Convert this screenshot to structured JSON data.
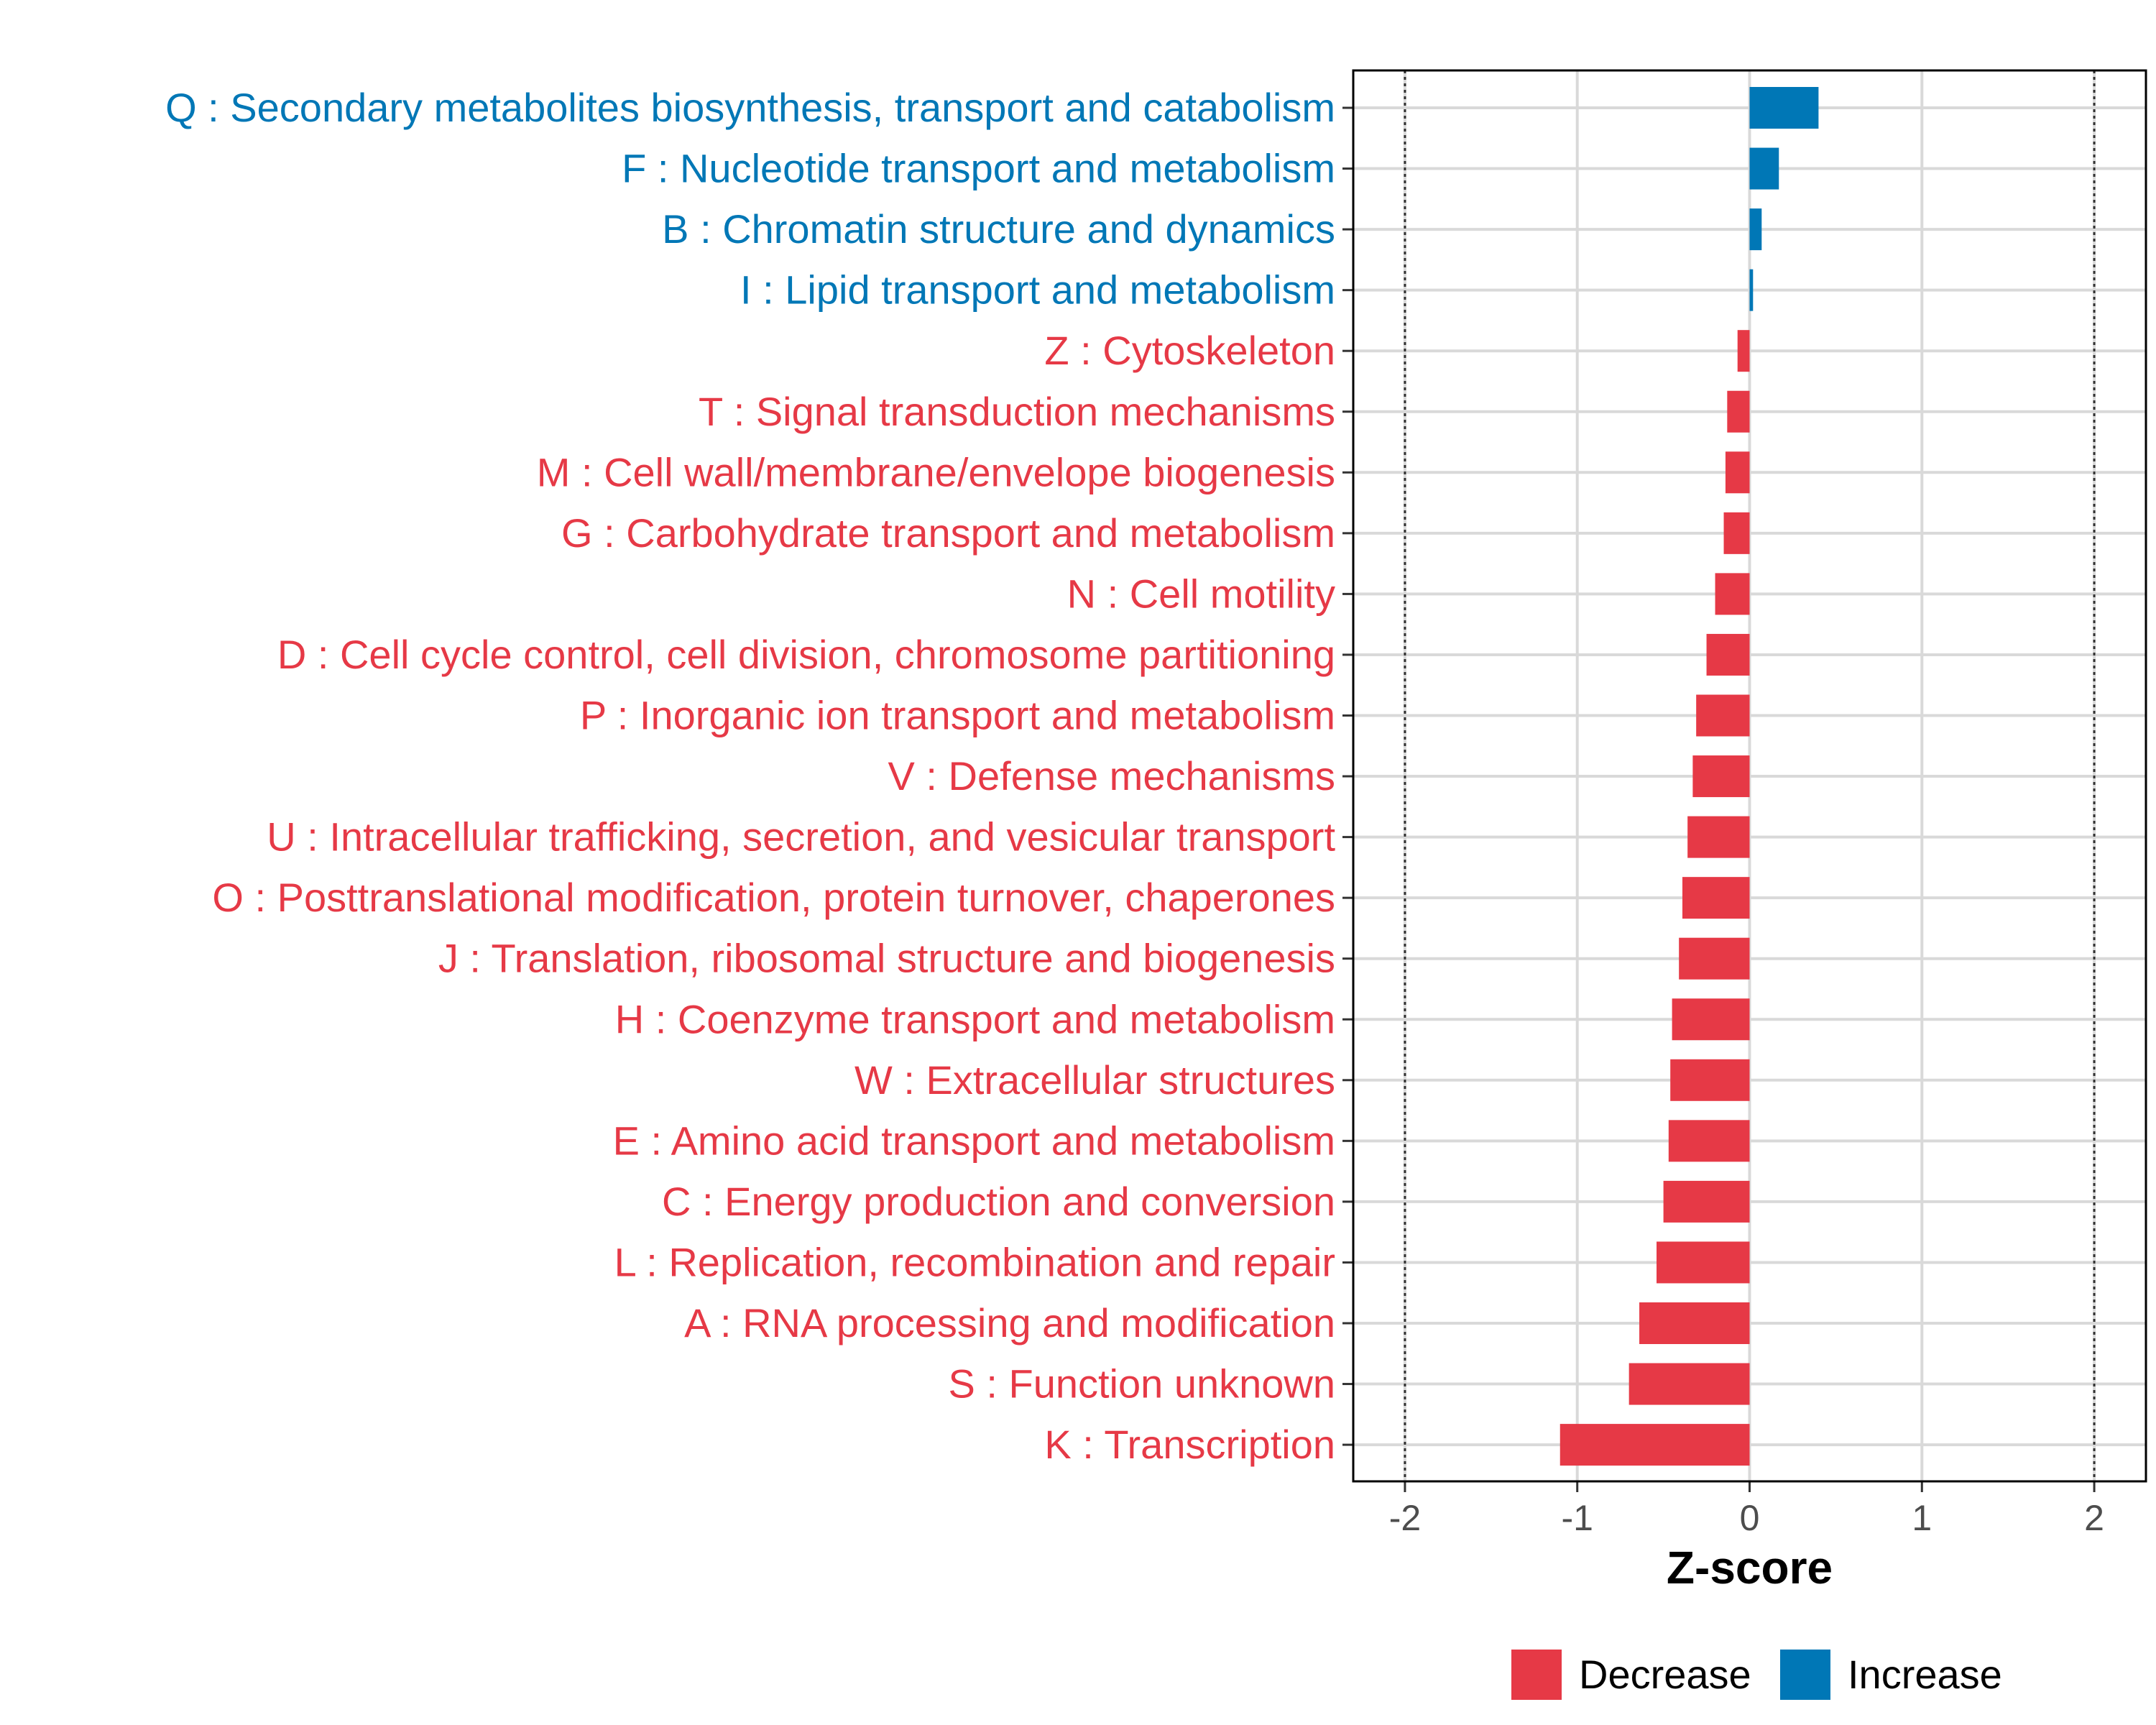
{
  "chart_data": {
    "type": "bar",
    "orientation": "horizontal",
    "title": "",
    "xlabel": "Z-score",
    "ylabel": "",
    "xlim": [
      -2.3,
      2.3
    ],
    "xticks": [
      -2,
      -1,
      0,
      1,
      2
    ],
    "xtick_labels": [
      "-2",
      "-1",
      "0",
      "1",
      "2"
    ],
    "reference_lines": [
      -2,
      2
    ],
    "grid": true,
    "colors": {
      "Decrease": "#e63946",
      "Increase": "#0077b6"
    },
    "legend": {
      "placement": "bottom",
      "entries": [
        "Decrease",
        "Increase"
      ]
    },
    "categories": [
      "Q : Secondary metabolites biosynthesis, transport and catabolism",
      "F : Nucleotide transport and metabolism",
      "B : Chromatin structure and dynamics",
      "I : Lipid transport and metabolism",
      "Z : Cytoskeleton",
      "T : Signal transduction mechanisms",
      "M : Cell wall/membrane/envelope biogenesis",
      "G : Carbohydrate transport and metabolism",
      "N : Cell motility",
      "D : Cell cycle control, cell division, chromosome partitioning",
      "P : Inorganic ion transport and metabolism",
      "V : Defense mechanisms",
      "U : Intracellular trafficking, secretion, and vesicular transport",
      "O : Posttranslational modification, protein turnover, chaperones",
      "J : Translation, ribosomal structure and biogenesis",
      "H : Coenzyme transport and metabolism",
      "W : Extracellular structures",
      "E : Amino acid transport and metabolism",
      "C : Energy production and conversion",
      "L : Replication, recombination and repair",
      "A : RNA processing and modification",
      "S : Function unknown",
      "K : Transcription"
    ],
    "values": [
      0.4,
      0.17,
      0.07,
      0.02,
      -0.07,
      -0.13,
      -0.14,
      -0.15,
      -0.2,
      -0.25,
      -0.31,
      -0.33,
      -0.36,
      -0.39,
      -0.41,
      -0.45,
      -0.46,
      -0.47,
      -0.5,
      -0.54,
      -0.64,
      -0.7,
      -1.1
    ],
    "groups": [
      "Increase",
      "Increase",
      "Increase",
      "Increase",
      "Decrease",
      "Decrease",
      "Decrease",
      "Decrease",
      "Decrease",
      "Decrease",
      "Decrease",
      "Decrease",
      "Decrease",
      "Decrease",
      "Decrease",
      "Decrease",
      "Decrease",
      "Decrease",
      "Decrease",
      "Decrease",
      "Decrease",
      "Decrease",
      "Decrease"
    ]
  }
}
